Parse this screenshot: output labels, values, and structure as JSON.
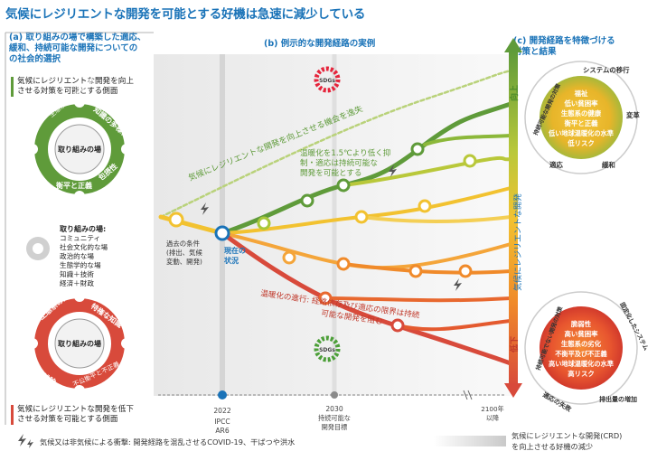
{
  "title": "気候にレジリエントな開発を可能とする好機は急速に減少している",
  "panel_a": {
    "heading_lines": [
      "(a) 取り組みの場で構築した適応、",
      "緩和、持続可能な開発についての",
      "の社会的選択"
    ],
    "upper_note_lines": [
      "気候にレジリエントな開発を向上",
      "させる対策を可能とする側面"
    ],
    "upper_gear": {
      "center_lines": [
        "取り組みの場"
      ],
      "labels": [
        "生態系の健全な管理",
        "知識の多様性",
        "衡平と正義",
        "包摂性"
      ]
    },
    "arenas_title": "取り組みの場:",
    "arenas": [
      "コミュニティ",
      "社会文化的な場",
      "政治的な場",
      "生態学的な場",
      "知識＋技術",
      "経済＋財政"
    ],
    "lower_gear": {
      "center_lines": [
        "取り組みの場"
      ],
      "labels": [
        "生態系の劣化",
        "特権な知識",
        "排除",
        "不公衡平と不正義"
      ]
    },
    "lower_note_lines": [
      "気候にレジリエントな開発を低下",
      "させる対策を可能とする側面"
    ]
  },
  "panel_b": {
    "heading": "(b) 例示的な開発経路の実例",
    "upper_dashed_label": "気候にレジリエントな開発を向上させる機会を逸失",
    "green_label_lines": [
      "温暖化を1.5℃より低く抑",
      "制・適応は持続可能な",
      "開発を可能とする"
    ],
    "red_label_lines": [
      "温暖化の進行: 経路依存及び適応の限界は持続",
      "可能な開発を阻む"
    ],
    "past_conditions_lines": [
      "過去の条件",
      "(排出、気候",
      "変動、開発)"
    ],
    "current_status_lines": [
      "現在の",
      "状況"
    ],
    "sdgs_badge": "SDGs",
    "timeline": [
      {
        "year": "2022",
        "sub": [
          "IPCC",
          "AR6"
        ]
      },
      {
        "year": "2030",
        "sub": [
          "持続可能な",
          "開発目標"
        ]
      },
      {
        "year": "2100年",
        "sub": [
          "以降"
        ]
      }
    ]
  },
  "panel_c": {
    "heading_lines": [
      "(c) 開発経路を特徴づける",
      "対策と結果"
    ],
    "axis_up": "向上",
    "axis_mid": "気候にレジリエントな開発",
    "axis_down": "低下",
    "upper_circle": {
      "ring_labels": [
        "持続可能な開発の対策",
        "システムの移行",
        "変革",
        "緩和",
        "適応"
      ],
      "center_lines": [
        "福祉",
        "低い貧困率",
        "生態系の健康",
        "衡平と正義",
        "低い地球温暖化の水準",
        "低リスク"
      ]
    },
    "lower_circle": {
      "ring_labels": [
        "持続可能でない開発の対策",
        "固定化したシステム",
        "排出量の増加",
        "適応の失敗"
      ],
      "center_lines": [
        "脆弱性",
        "高い貧困率",
        "生態系の劣化",
        "不衡平及び不正義",
        "高い地球温暖化の水準",
        "高リスク"
      ]
    }
  },
  "footer": {
    "shock_note": "気候又は非気候による衝撃: 開発経路を混乱させるCOVID-19、干ばつや洪水",
    "gradient_note_lines": [
      "気候にレジリエントな開発(CRD)",
      "を向上させる好機の減少"
    ]
  },
  "colors": {
    "blue": "#1a73b8",
    "green": "#5f9b3a",
    "red": "#d84a3b",
    "orange": "#f08a2a",
    "yellow": "#f2c230"
  }
}
